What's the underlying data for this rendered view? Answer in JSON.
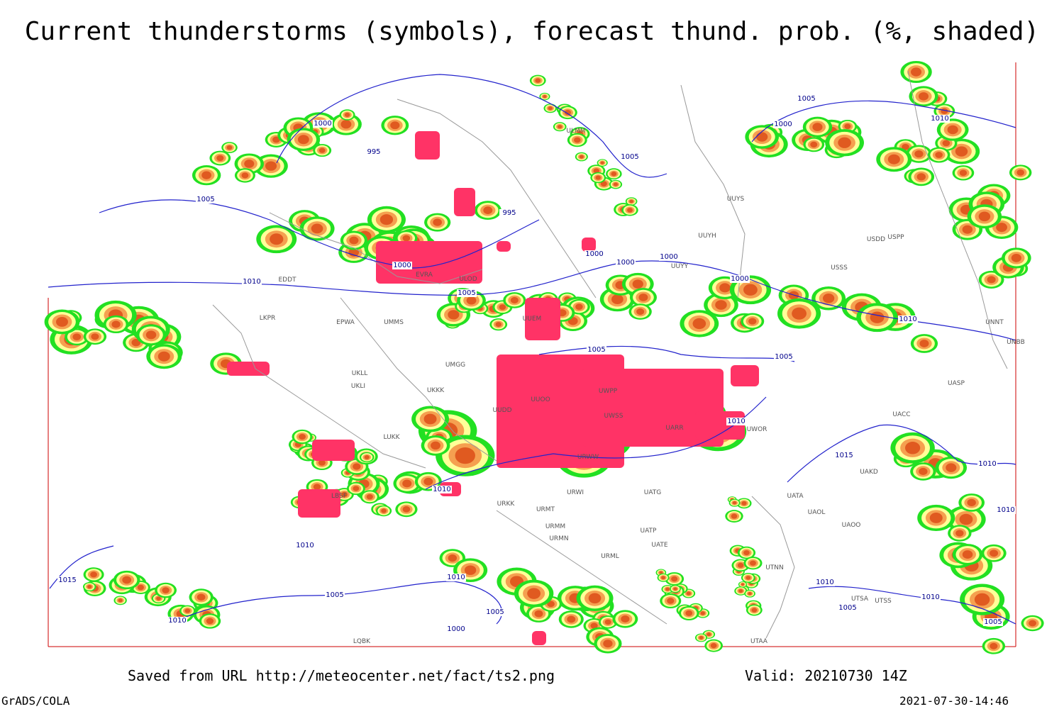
{
  "header": {
    "title": "Current thunderstorms (symbols), forecast thund. prob. (%, shaded)"
  },
  "footer": {
    "source": "Saved from URL http://meteocenter.net/fact/ts2.png",
    "valid": "Valid: 20210730 14Z",
    "software": "GrADS/COLA",
    "timestamp": "2021-07-30-14:46"
  },
  "stations": [
    "ULMM",
    "UUYS",
    "UUYH",
    "UUYY",
    "EDDT",
    "EVRA",
    "ULOD",
    "EPWA",
    "UMMS",
    "LKPR",
    "UMGG",
    "UKLL",
    "UKLI",
    "UKKK",
    "LUKK",
    "UUDD",
    "UUOO",
    "UUEM",
    "UWPP",
    "UWSS",
    "UARR",
    "UWOR",
    "URWW",
    "URWI",
    "UATG",
    "URKK",
    "URMT",
    "URMM",
    "URMN",
    "URML",
    "UATE",
    "UATP",
    "UATA",
    "UAOL",
    "UAOO",
    "UAKD",
    "UACC",
    "UASP",
    "UNNT",
    "UNBB",
    "USSS",
    "USPP",
    "USDD",
    "UTNN",
    "UTSS",
    "UTSA",
    "UTAA",
    "LQBK",
    "LBSF"
  ],
  "isobars": [
    "1000",
    "995",
    "1005",
    "995",
    "1000",
    "1010",
    "1005",
    "1005",
    "1005",
    "1000",
    "1010",
    "1000",
    "1000",
    "1000",
    "1000",
    "1005",
    "1005",
    "1010",
    "1010",
    "1015",
    "1010",
    "1010",
    "1010",
    "1015",
    "1010",
    "1005",
    "1005",
    "1010",
    "1000",
    "1010",
    "1010",
    "1005",
    "1010",
    "1005"
  ]
}
